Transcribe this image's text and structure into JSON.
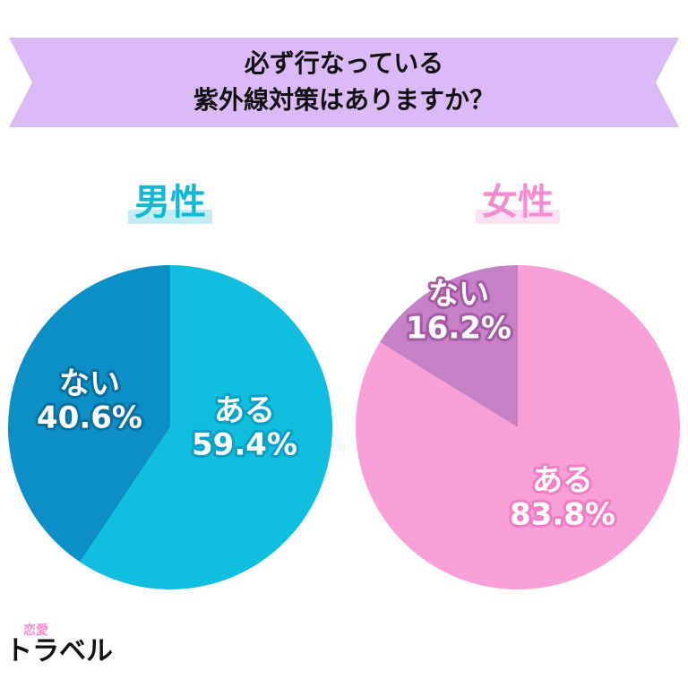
{
  "header": {
    "title_lines": [
      "必ず行なっている",
      "紫外線対策はありますか？"
    ]
  },
  "chart_data": [
    {
      "type": "pie",
      "title": "男性",
      "title_color": "#11b8d6",
      "categories": [
        "ある",
        "ない"
      ],
      "values": [
        59.4,
        40.6
      ],
      "value_labels": [
        "59.4%",
        "40.6%"
      ],
      "colors": [
        "#10bfe0",
        "#0b8fc6"
      ],
      "label_colors": [
        "#0a9fc4",
        "#08709e"
      ]
    },
    {
      "type": "pie",
      "title": "女性",
      "title_color": "#f48ccf",
      "categories": [
        "ある",
        "ない"
      ],
      "values": [
        83.8,
        16.2
      ],
      "value_labels": [
        "83.8%",
        "16.2%"
      ],
      "colors": [
        "#f9a0d9",
        "#c680c5"
      ],
      "label_colors": [
        "#f27cc6",
        "#a65aa6"
      ]
    }
  ],
  "logo": {
    "small": "恋愛",
    "text": "トラベル"
  }
}
